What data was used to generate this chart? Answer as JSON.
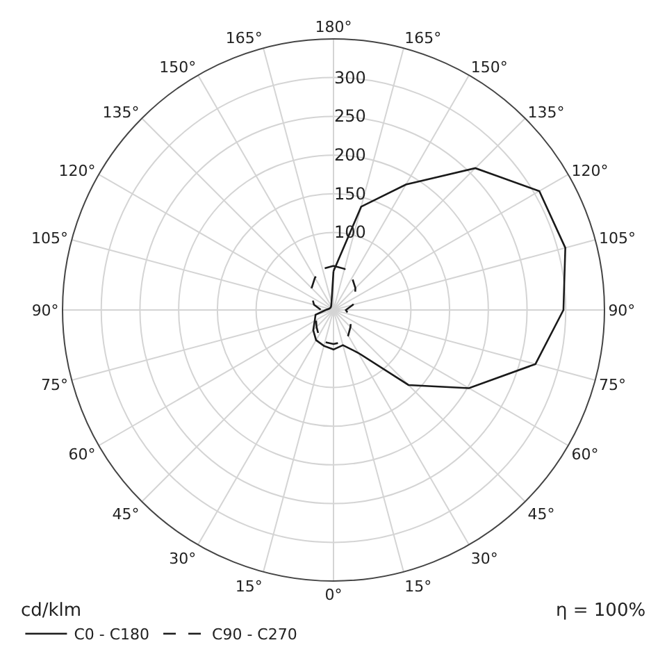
{
  "chart_data": {
    "type": "radar",
    "categories": [
      "180°",
      "165°",
      "150°",
      "135°",
      "120°",
      "105°",
      "90°",
      "75°",
      "60°",
      "45°",
      "30°",
      "15°",
      "0°",
      "15°",
      "30°",
      "45°",
      "60°",
      "75°",
      "90°",
      "105°",
      "120°",
      "135°",
      "150°",
      "165°"
    ],
    "series": [
      {
        "name": "C0 - C180",
        "color": "#1a1a1a",
        "line_style": "solid",
        "values": [
          50,
          138,
          187,
          259,
          307,
          310,
          297,
          270,
          202,
          137,
          64,
          47,
          51,
          48,
          45,
          37,
          28,
          24,
          10,
          6,
          5,
          5,
          6,
          10
        ]
      },
      {
        "name": "C90 - C270",
        "color": "#1a1a1a",
        "line_style": "dashed",
        "values": [
          57,
          55,
          48,
          40,
          32,
          26,
          16,
          20,
          26,
          31,
          38,
          43,
          44,
          43,
          38,
          31,
          26,
          20,
          16,
          26,
          32,
          40,
          48,
          55
        ]
      }
    ],
    "ylim": [
      0,
      350
    ],
    "yticks": [
      100,
      150,
      200,
      250,
      300
    ],
    "ylabel": "cd/klm",
    "annotations": [
      "η = 100%"
    ],
    "grid": true,
    "legend": "bottom left",
    "marker": "none"
  }
}
